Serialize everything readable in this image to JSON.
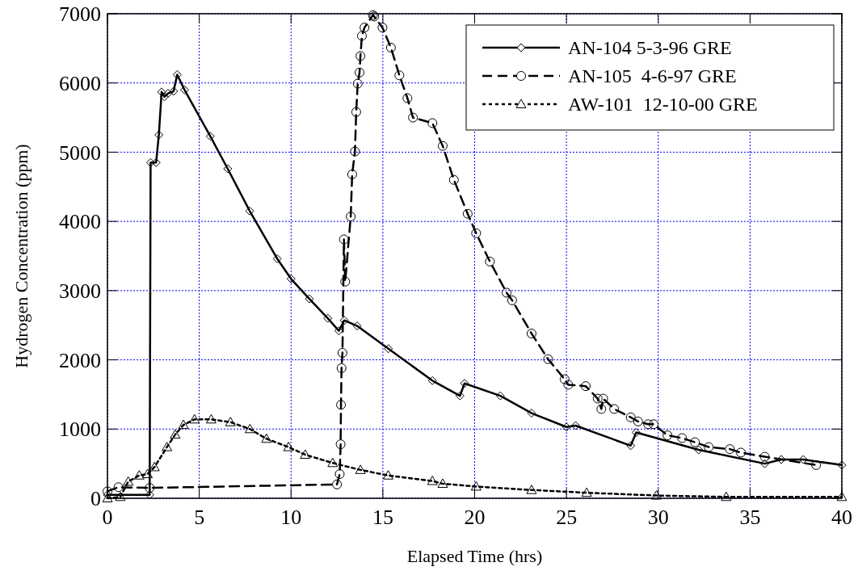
{
  "chart_data": {
    "type": "line",
    "xlabel": "Elapsed Time (hrs)",
    "ylabel": "Hydrogen Concentration (ppm)",
    "xlim": [
      0,
      40
    ],
    "ylim": [
      0,
      7000
    ],
    "xticks": [
      0,
      5,
      10,
      15,
      20,
      25,
      30,
      35,
      40
    ],
    "yticks": [
      0,
      1000,
      2000,
      3000,
      4000,
      5000,
      6000,
      7000
    ],
    "grid": true,
    "legend": "top right",
    "series": [
      {
        "name": "AN-104 5-3-96 GRE",
        "color": "#000000",
        "marker": "diamond",
        "line_style": "solid",
        "x": [
          0,
          2.3,
          2.35,
          2.65,
          2.8,
          2.95,
          3.1,
          3.3,
          3.6,
          3.8,
          4.2,
          5.6,
          6.55,
          7.75,
          9.25,
          10,
          11,
          12,
          12.6,
          12.9,
          13.6,
          15.3,
          17.7,
          19.2,
          19.45,
          21.4,
          23.1,
          25,
          25.5,
          28.5,
          28.8,
          32.2,
          35.8,
          36.7,
          37.9,
          40
        ],
        "values": [
          50,
          50,
          4850,
          4850,
          5250,
          5870,
          5800,
          5850,
          5880,
          6120,
          5900,
          5230,
          4760,
          4150,
          3460,
          3170,
          2880,
          2600,
          2420,
          2570,
          2490,
          2160,
          1700,
          1480,
          1660,
          1480,
          1230,
          1030,
          1050,
          760,
          950,
          700,
          500,
          560,
          560,
          480
        ]
      },
      {
        "name": "AN-105  4-6-97 GRE",
        "color": "#000000",
        "marker": "circle",
        "line_style": "dashed",
        "x": [
          0,
          0.6,
          2.3,
          12.5,
          12.65,
          12.7,
          12.72,
          12.75,
          12.8,
          12.88,
          12.95,
          13.25,
          13.33,
          13.48,
          13.55,
          13.63,
          13.73,
          13.78,
          13.86,
          14,
          14.46,
          14.53,
          14.98,
          15.44,
          15.9,
          16.34,
          16.64,
          17.7,
          18.26,
          18.87,
          19.62,
          20.08,
          20.83,
          21.74,
          22.04,
          23.1,
          24,
          24.9,
          25.1,
          26.05,
          26.7,
          26.9,
          27,
          27.6,
          28.5,
          28.9,
          29.45,
          29.75,
          30.5,
          31.3,
          32,
          32.75,
          33.9,
          34.5,
          35.8,
          38.6
        ],
        "values": [
          100,
          160,
          150,
          200,
          350,
          780,
          1350,
          1880,
          2100,
          3740,
          3130,
          4070,
          4680,
          5010,
          5580,
          5990,
          6150,
          6390,
          6680,
          6800,
          6980,
          6960,
          6800,
          6510,
          6110,
          5780,
          5500,
          5420,
          5090,
          4600,
          4110,
          3830,
          3420,
          2970,
          2860,
          2380,
          2010,
          1720,
          1640,
          1620,
          1440,
          1290,
          1440,
          1290,
          1170,
          1110,
          1070,
          1070,
          910,
          870,
          810,
          740,
          710,
          660,
          600,
          480
        ]
      },
      {
        "name": "AW-101  12-10-00 GRE",
        "color": "#000000",
        "marker": "triangle",
        "line_style": "dotted",
        "x": [
          0,
          0.7,
          1.13,
          1.73,
          2.18,
          2.56,
          3.24,
          3.69,
          4.14,
          4.74,
          5.65,
          6.7,
          7.76,
          8.66,
          9.86,
          10.77,
          12.27,
          13.78,
          15.29,
          17.7,
          18.26,
          20.08,
          23.1,
          26.1,
          29.9,
          33.7,
          40
        ],
        "values": [
          0,
          20,
          240,
          330,
          350,
          450,
          740,
          920,
          1060,
          1140,
          1140,
          1100,
          1000,
          860,
          740,
          630,
          510,
          410,
          330,
          250,
          210,
          170,
          120,
          80,
          40,
          20,
          20
        ]
      }
    ]
  }
}
